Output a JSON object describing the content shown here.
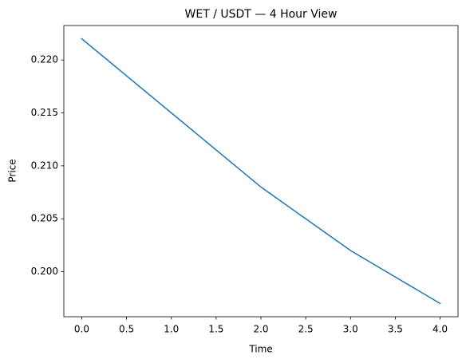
{
  "chart_data": {
    "type": "line",
    "title": "WET / USDT — 4 Hour View",
    "x_label": "Time",
    "y_label": "Price",
    "x": [
      0,
      1,
      2,
      3,
      4
    ],
    "series": [
      {
        "color": "#1f77b4",
        "values": [
          0.222,
          0.215,
          0.208,
          0.202,
          0.197
        ]
      }
    ],
    "xlim": [
      -0.2,
      4.2
    ],
    "xticks": [
      {
        "value": 0,
        "label": "0.0"
      },
      0.5,
      {
        "value": 1,
        "label": "1.0"
      },
      1.5,
      {
        "value": 2,
        "label": "2.0"
      },
      2.5,
      {
        "value": 3,
        "label": "3.0"
      },
      3.5,
      {
        "value": 4,
        "label": "4.0"
      }
    ],
    "ylim": [
      0.19575,
      0.22325
    ],
    "yticks": [
      {
        "value": 0.2,
        "label": "0.200"
      },
      0.205,
      {
        "value": 0.21,
        "label": "0.210"
      },
      0.215,
      {
        "value": 0.22,
        "label": "0.220"
      }
    ],
    "grid": false
  }
}
